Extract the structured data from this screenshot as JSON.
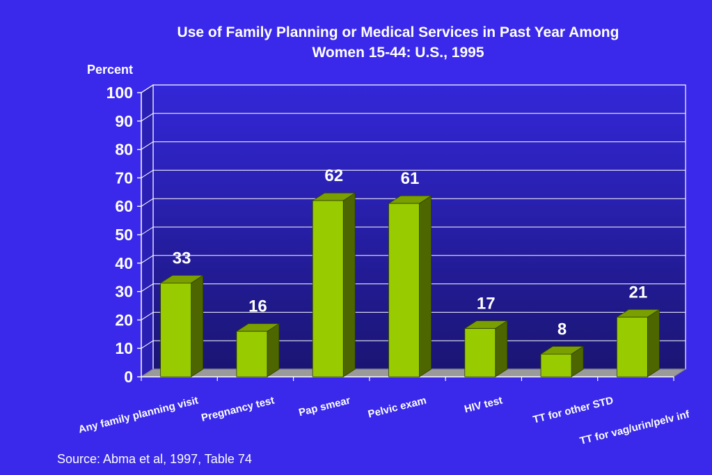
{
  "chart_data": {
    "type": "bar",
    "title_lines": [
      "Use of Family Planning or Medical Services in Past Year Among",
      "Women 15-44:  U.S., 1995"
    ],
    "ylabel": "Percent",
    "xlabel": "",
    "ylim": [
      0,
      100
    ],
    "yticks": [
      "0",
      "10",
      "20",
      "30",
      "40",
      "50",
      "60",
      "70",
      "80",
      "90",
      "100"
    ],
    "grid": true,
    "categories": [
      "Any family planning visit",
      "Pregnancy test",
      "Pap smear",
      "Pelvic exam",
      "HIV test",
      "TT for other STD",
      "TT for vag/urin/pelv inf"
    ],
    "values": [
      33,
      16,
      62,
      61,
      17,
      8,
      21
    ],
    "data_labels": [
      "33",
      "16",
      "62",
      "61",
      "17",
      "8",
      "21"
    ]
  },
  "source": "Source:  Abma et al, 1997, Table 74",
  "colors": {
    "background": "#3a29ea",
    "bar_front": "#99cc00",
    "bar_side": "#4d6600",
    "bar_top": "#7a9f00",
    "text": "#ffffff"
  }
}
